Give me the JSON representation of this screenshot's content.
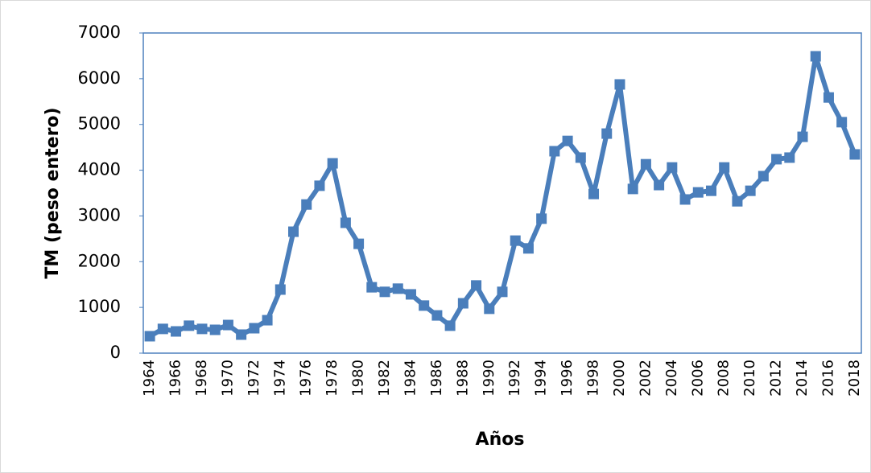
{
  "chart_data": {
    "type": "line",
    "x_label": "Años",
    "y_label": "TM (peso entero)",
    "categories": [
      "1964",
      null,
      "1966",
      null,
      "1968",
      null,
      "1970",
      null,
      "1972",
      null,
      "1974",
      null,
      "1976",
      null,
      "1978",
      null,
      "1980",
      null,
      "1982",
      null,
      "1984",
      null,
      "1986",
      null,
      "1988",
      null,
      "1990",
      null,
      "1992",
      null,
      "1994",
      null,
      "1996",
      null,
      "1998",
      null,
      "2000",
      null,
      "2002",
      null,
      "2004",
      null,
      "2006",
      null,
      "2008",
      null,
      "2010",
      null,
      "2012",
      null,
      "2014",
      null,
      "2016",
      null,
      "2018"
    ],
    "series": [
      {
        "color": "#4a7ebb",
        "values": [
          370,
          530,
          475,
          600,
          530,
          510,
          615,
          405,
          545,
          720,
          1390,
          2655,
          3250,
          3660,
          4150,
          2850,
          2390,
          1440,
          1340,
          1410,
          1285,
          1040,
          825,
          600,
          1090,
          1480,
          970,
          1340,
          2460,
          2290,
          2940,
          4415,
          4640,
          4275,
          3480,
          4800,
          5875,
          3590,
          4130,
          3675,
          4060,
          3360,
          3515,
          3550,
          4060,
          3320,
          3550,
          3870,
          4240,
          4275,
          4730,
          6490,
          5590,
          5050,
          4345
        ]
      }
    ],
    "ylim": [
      0,
      7000
    ],
    "yticks": [
      0,
      1000,
      2000,
      3000,
      4000,
      5000,
      6000,
      7000
    ],
    "grid": false
  }
}
